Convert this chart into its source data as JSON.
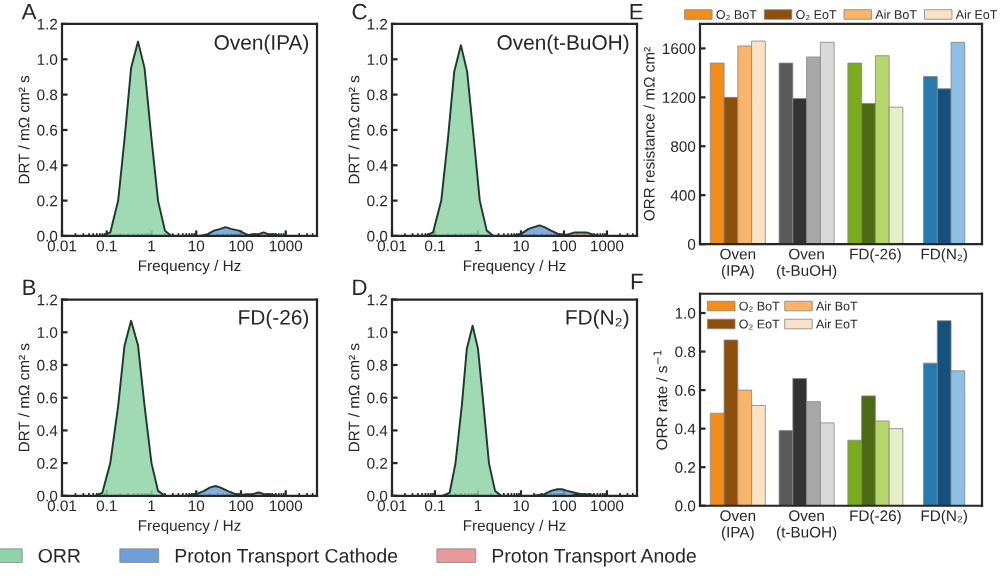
{
  "chart_data": [
    {
      "type": "area",
      "title": "Oven(IPA)",
      "annotations": [
        "A"
      ],
      "xlabel": "Frequency / Hz",
      "ylabel": "DRT / mΩ cm² s",
      "log": "x",
      "xlim": [
        0.01,
        5000
      ],
      "xticks": [
        0.01,
        0.1,
        1,
        10,
        100,
        1000
      ],
      "ylim": [
        0,
        1.2
      ],
      "yticks": [
        {
          "value": 0,
          "label": "0.0"
        },
        {
          "value": 0.2,
          "label": "0.2"
        },
        {
          "value": 0.4,
          "label": "0.4"
        },
        {
          "value": 0.6,
          "label": "0.6"
        },
        {
          "value": 0.8,
          "label": "0.8"
        },
        {
          "value": 1.0,
          "label": "1.0"
        },
        {
          "value": 1.2,
          "label": "1.2"
        }
      ],
      "legend": "bottom",
      "series": [
        {
          "name": "ORR",
          "color": "#8fd4a8",
          "x": [
            0.08,
            0.12,
            0.18,
            0.25,
            0.35,
            0.5,
            0.7,
            1.0,
            1.4,
            2.0,
            2.8
          ],
          "values": [
            0,
            0.02,
            0.2,
            0.55,
            0.95,
            1.1,
            0.95,
            0.55,
            0.2,
            0.03,
            0
          ]
        },
        {
          "name": "Proton Transport Cathode",
          "color": "#6f9fd8",
          "x": [
            12,
            18,
            25,
            35,
            45,
            60,
            90,
            130,
            180
          ],
          "values": [
            0,
            0.01,
            0.03,
            0.04,
            0.05,
            0.04,
            0.03,
            0.01,
            0
          ]
        },
        {
          "name": "Proton Transport Anode",
          "color": "#e89a9a",
          "x": [
            120,
            180,
            250,
            320,
            400,
            550,
            800
          ],
          "values": [
            0,
            0.01,
            0.01,
            0.02,
            0.01,
            0.01,
            0
          ]
        }
      ]
    },
    {
      "type": "area",
      "title": "Oven(t-BuOH)",
      "annotations": [
        "C"
      ],
      "xlabel": "Frequency / Hz",
      "ylabel": "DRT / mΩ cm² s",
      "log": "x",
      "xlim": [
        0.01,
        5000
      ],
      "xticks": [
        0.01,
        0.1,
        1,
        10,
        100,
        1000
      ],
      "ylim": [
        0,
        1.2
      ],
      "yticks": [
        {
          "value": 0,
          "label": "0.0"
        },
        {
          "value": 0.2,
          "label": "0.2"
        },
        {
          "value": 0.4,
          "label": "0.4"
        },
        {
          "value": 0.6,
          "label": "0.6"
        },
        {
          "value": 0.8,
          "label": "0.8"
        },
        {
          "value": 1.0,
          "label": "1.0"
        },
        {
          "value": 1.2,
          "label": "1.2"
        }
      ],
      "series": [
        {
          "color": "#8fd4a8",
          "x": [
            0.06,
            0.09,
            0.14,
            0.2,
            0.28,
            0.4,
            0.56,
            0.8,
            1.1,
            1.6,
            2.3
          ],
          "values": [
            0,
            0.02,
            0.2,
            0.55,
            0.93,
            1.08,
            0.93,
            0.55,
            0.2,
            0.03,
            0
          ]
        },
        {
          "color": "#6f9fd8",
          "x": [
            6,
            10,
            15,
            20,
            27,
            35,
            50,
            75,
            110
          ],
          "values": [
            0,
            0.01,
            0.04,
            0.05,
            0.06,
            0.05,
            0.03,
            0.01,
            0
          ]
        },
        {
          "color": "#e89a9a",
          "x": [
            80,
            130,
            180,
            250,
            330,
            450,
            650
          ],
          "values": [
            0,
            0.01,
            0.02,
            0.02,
            0.02,
            0.01,
            0
          ]
        }
      ]
    },
    {
      "type": "bar",
      "annotations": [
        "E"
      ],
      "ylabel": "ORR resistance / mΩ cm²",
      "categories": [
        "Oven\n(IPA)",
        "Oven\n(t-BuOH)",
        "FD(-26)",
        "FD(N₂)"
      ],
      "ylim": [
        0,
        1800
      ],
      "yticks": [
        0,
        400,
        800,
        1200,
        1600
      ],
      "legend": "top",
      "series": [
        {
          "name": "O₂ BoT",
          "color": "#f28c1c",
          "colors": [
            "#f28c1c",
            "#5a5a5a",
            "#7aab1f",
            "#2a78b0"
          ],
          "values": [
            1480,
            1480,
            1480,
            1370
          ]
        },
        {
          "name": "O₂ EoT",
          "color": "#8c4f0c",
          "colors": [
            "#8c4f0c",
            "#333333",
            "#4d6b14",
            "#16507e"
          ],
          "values": [
            1200,
            1190,
            1150,
            1270
          ]
        },
        {
          "name": "Air BoT",
          "color": "#f7b46a",
          "colors": [
            "#f7b46a",
            "#a8a8a8",
            "#b5d66a",
            "#8cbfe3"
          ],
          "values": [
            1620,
            1530,
            1540,
            1650
          ]
        },
        {
          "name": "Air EoT",
          "color": "#fbe2c4",
          "colors": [
            "#fbe2c4",
            "#d9d9d9",
            "#e3efc4",
            null
          ],
          "values": [
            1660,
            1650,
            1120,
            null
          ]
        }
      ]
    },
    {
      "type": "area",
      "title": "FD(-26)",
      "annotations": [
        "B"
      ],
      "xlabel": "Frequency / Hz",
      "ylabel": "DRT / mΩ cm² s",
      "log": "x",
      "xlim": [
        0.01,
        5000
      ],
      "xticks": [
        0.01,
        0.1,
        1,
        10,
        100,
        1000
      ],
      "ylim": [
        0,
        1.2
      ],
      "yticks": [
        {
          "value": 0,
          "label": "0.0"
        },
        {
          "value": 0.2,
          "label": "0.2"
        },
        {
          "value": 0.4,
          "label": "0.4"
        },
        {
          "value": 0.6,
          "label": "0.6"
        },
        {
          "value": 0.8,
          "label": "0.8"
        },
        {
          "value": 1.0,
          "label": "1.0"
        },
        {
          "value": 1.2,
          "label": "1.2"
        }
      ],
      "series": [
        {
          "color": "#8fd4a8",
          "x": [
            0.055,
            0.08,
            0.12,
            0.18,
            0.25,
            0.35,
            0.5,
            0.7,
            1.0,
            1.4,
            2.0
          ],
          "values": [
            0,
            0.02,
            0.2,
            0.55,
            0.92,
            1.07,
            0.92,
            0.55,
            0.2,
            0.03,
            0
          ]
        },
        {
          "color": "#6f9fd8",
          "x": [
            6,
            10,
            15,
            20,
            27,
            35,
            50,
            75,
            110
          ],
          "values": [
            0,
            0.01,
            0.03,
            0.05,
            0.06,
            0.05,
            0.03,
            0.01,
            0
          ]
        },
        {
          "color": "#e89a9a",
          "x": [
            80,
            130,
            180,
            250,
            330,
            450,
            650
          ],
          "values": [
            0,
            0.01,
            0.01,
            0.02,
            0.01,
            0.01,
            0
          ]
        }
      ]
    },
    {
      "type": "area",
      "title": "FD(N₂)",
      "annotations": [
        "D"
      ],
      "xlabel": "Frequency / Hz",
      "ylabel": "DRT / mΩ cm² s",
      "log": "x",
      "xlim": [
        0.01,
        5000
      ],
      "xticks": [
        0.01,
        0.1,
        1,
        10,
        100,
        1000
      ],
      "ylim": [
        0,
        1.2
      ],
      "yticks": [
        {
          "value": 0,
          "label": "0.0"
        },
        {
          "value": 0.2,
          "label": "0.2"
        },
        {
          "value": 0.4,
          "label": "0.4"
        },
        {
          "value": 0.6,
          "label": "0.6"
        },
        {
          "value": 0.8,
          "label": "0.8"
        },
        {
          "value": 1.0,
          "label": "1.0"
        },
        {
          "value": 1.2,
          "label": "1.2"
        }
      ],
      "series": [
        {
          "color": "#8fd4a8",
          "x": [
            0.15,
            0.22,
            0.3,
            0.42,
            0.55,
            0.75,
            1.0,
            1.35,
            1.8,
            2.5,
            3.5
          ],
          "values": [
            0,
            0.02,
            0.2,
            0.55,
            0.9,
            1.04,
            0.9,
            0.55,
            0.2,
            0.03,
            0
          ]
        },
        {
          "color": "#6f9fd8",
          "x": [
            20,
            35,
            50,
            70,
            90,
            120,
            170,
            250,
            350
          ],
          "values": [
            0,
            0.01,
            0.03,
            0.04,
            0.04,
            0.03,
            0.02,
            0.01,
            0
          ]
        },
        {
          "color": "#e89a9a",
          "x": [
            150,
            220,
            300,
            400,
            550,
            800
          ],
          "values": [
            0,
            0.01,
            0.01,
            0.01,
            0,
            0
          ]
        }
      ]
    },
    {
      "type": "bar",
      "annotations": [
        "F"
      ],
      "ylabel": "ORR rate / s$^{−1}$",
      "categories": [
        "Oven\n(IPA)",
        "Oven\n(t-BuOH)",
        "FD(-26)",
        "FD(N₂)"
      ],
      "ylim": [
        0,
        1.1
      ],
      "yticks": [
        {
          "value": 0,
          "label": "0.0"
        },
        {
          "value": 0.2,
          "label": "0.2"
        },
        {
          "value": 0.4,
          "label": "0.4"
        },
        {
          "value": 0.6,
          "label": "0.6"
        },
        {
          "value": 0.8,
          "label": "0.8"
        },
        {
          "value": 1.0,
          "label": "1.0"
        }
      ],
      "legend": "top left",
      "series": [
        {
          "name": "O₂ BoT",
          "color": "#f28c1c",
          "colors": [
            "#f28c1c",
            "#5a5a5a",
            "#7aab1f",
            "#2a78b0"
          ],
          "values": [
            0.48,
            0.39,
            0.34,
            0.74
          ]
        },
        {
          "name": "O₂ EoT",
          "color": "#8c4f0c",
          "colors": [
            "#8c4f0c",
            "#333333",
            "#4d6b14",
            "#16507e"
          ],
          "values": [
            0.86,
            0.66,
            0.57,
            0.96
          ]
        },
        {
          "name": "Air BoT",
          "color": "#f7b46a",
          "colors": [
            "#f7b46a",
            "#a8a8a8",
            "#b5d66a",
            "#8cbfe3"
          ],
          "values": [
            0.6,
            0.54,
            0.44,
            0.7
          ]
        },
        {
          "name": "Air EoT",
          "color": "#fbe2c4",
          "colors": [
            "#fbe2c4",
            "#d9d9d9",
            "#e3efc4",
            null
          ],
          "values": [
            0.52,
            0.43,
            0.4,
            null
          ]
        }
      ]
    }
  ]
}
